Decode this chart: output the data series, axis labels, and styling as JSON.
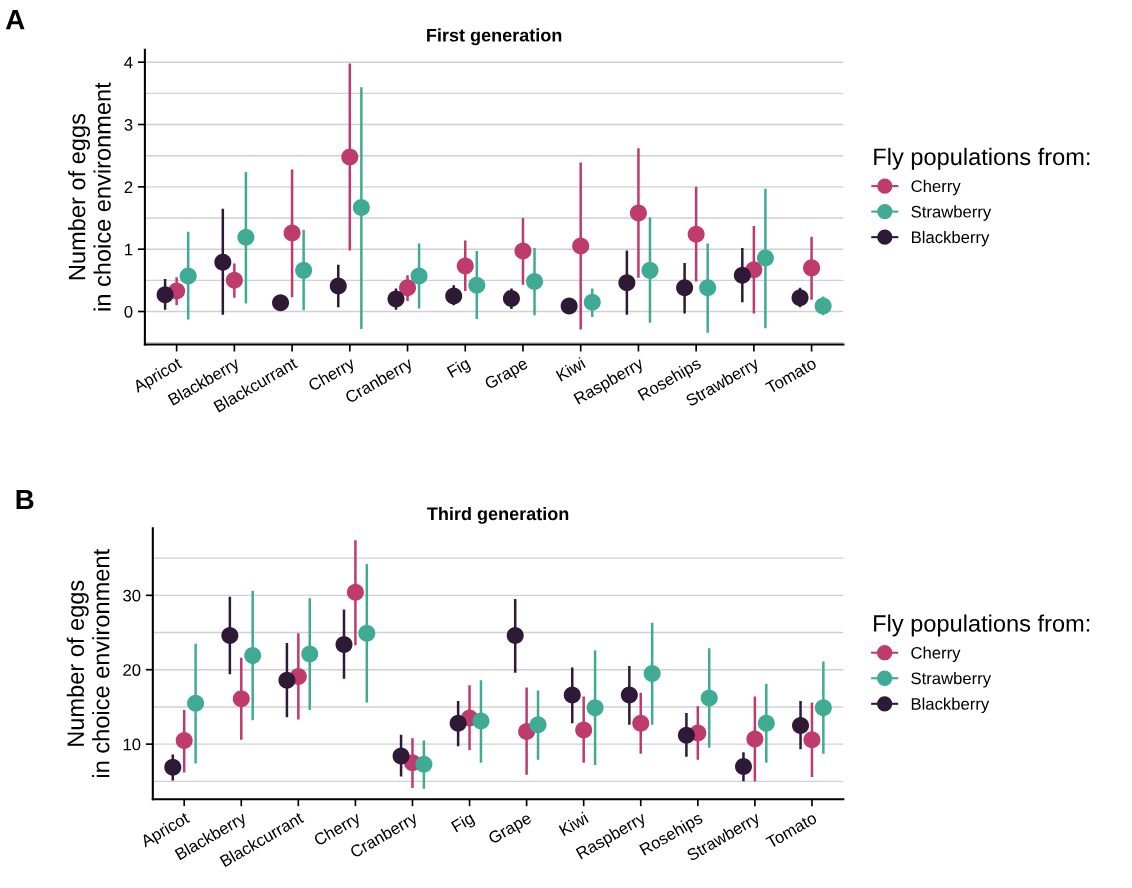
{
  "chart_data": [
    {
      "type": "scatter",
      "title": "First generation",
      "ylabel": "Number of eggs\nin choice environment",
      "legend_title": "Fly populations from:",
      "annotations": [
        "A"
      ],
      "categories": [
        "Apricot",
        "Blackberry",
        "Blackcurrant",
        "Cherry",
        "Cranberry",
        "Fig",
        "Grape",
        "Kiwi",
        "Raspberry",
        "Rosehips",
        "Strawberry",
        "Tomato"
      ],
      "ylim": [
        -0.53,
        4.2
      ],
      "yticks": [
        0,
        1,
        2,
        3,
        4
      ],
      "grid": "y",
      "legend": "right",
      "marker": "circle",
      "series": [
        {
          "name": "Cherry",
          "color": "#bf3b6d",
          "values": [
            0.33,
            0.5,
            1.26,
            2.48,
            0.38,
            0.73,
            0.97,
            1.05,
            1.58,
            1.24,
            0.67,
            0.7
          ],
          "errors": [
            [
              0.1,
              0.55
            ],
            [
              0.22,
              0.77
            ],
            [
              0.23,
              2.28
            ],
            [
              0.98,
              3.98
            ],
            [
              0.17,
              0.58
            ],
            [
              0.33,
              1.14
            ],
            [
              0.43,
              1.5
            ],
            [
              -0.29,
              2.39
            ],
            [
              0.54,
              2.62
            ],
            [
              0.48,
              2.0
            ],
            [
              -0.03,
              1.37
            ],
            [
              0.19,
              1.2
            ]
          ]
        },
        {
          "name": "Strawberry",
          "color": "#3fab94",
          "values": [
            0.57,
            1.19,
            0.66,
            1.67,
            0.57,
            0.42,
            0.48,
            0.15,
            0.66,
            0.38,
            0.86,
            0.09
          ],
          "errors": [
            [
              -0.13,
              1.28
            ],
            [
              0.13,
              2.24
            ],
            [
              0.02,
              1.31
            ],
            [
              -0.28,
              3.6
            ],
            [
              0.05,
              1.09
            ],
            [
              -0.12,
              0.97
            ],
            [
              -0.06,
              1.02
            ],
            [
              -0.09,
              0.37
            ],
            [
              -0.18,
              1.51
            ],
            [
              -0.34,
              1.09
            ],
            [
              -0.27,
              1.97
            ],
            [
              -0.06,
              0.24
            ]
          ]
        },
        {
          "name": "Blackberry",
          "color": "#2e1a37",
          "values": [
            0.27,
            0.79,
            0.14,
            0.41,
            0.2,
            0.25,
            0.21,
            0.09,
            0.46,
            0.38,
            0.58,
            0.22
          ],
          "errors": [
            [
              0.03,
              0.52
            ],
            [
              -0.05,
              1.65
            ],
            [
              0.03,
              0.25
            ],
            [
              0.07,
              0.75
            ],
            [
              0.03,
              0.37
            ],
            [
              0.1,
              0.42
            ],
            [
              0.04,
              0.37
            ],
            null,
            [
              -0.05,
              0.98
            ],
            [
              -0.03,
              0.78
            ],
            [
              0.15,
              1.02
            ],
            [
              0.07,
              0.38
            ]
          ]
        }
      ]
    },
    {
      "type": "scatter",
      "title": "Third generation",
      "ylabel": "Number of eggs\nin choice environment",
      "legend_title": "Fly populations from:",
      "annotations": [
        "B"
      ],
      "categories": [
        "Apricot",
        "Blackberry",
        "Blackcurrant",
        "Cherry",
        "Cranberry",
        "Fig",
        "Grape",
        "Kiwi",
        "Raspberry",
        "Rosehips",
        "Strawberry",
        "Tomato"
      ],
      "ylim": [
        2.6,
        39
      ],
      "yticks": [
        10,
        20,
        30
      ],
      "grid": "y",
      "legend": "right",
      "marker": "circle",
      "series": [
        {
          "name": "Cherry",
          "color": "#bf3b6d",
          "values": [
            10.5,
            16.1,
            19.1,
            30.4,
            7.5,
            13.5,
            11.7,
            11.9,
            12.8,
            11.5,
            10.7,
            10.6
          ],
          "errors": [
            [
              6.2,
              14.6
            ],
            [
              10.6,
              21.6
            ],
            [
              13.3,
              24.9
            ],
            [
              23.3,
              37.4
            ],
            [
              4.1,
              10.8
            ],
            [
              9.2,
              17.9
            ],
            [
              5.9,
              17.6
            ],
            [
              7.5,
              16.4
            ],
            [
              8.7,
              16.9
            ],
            [
              7.9,
              15.1
            ],
            [
              5.0,
              16.4
            ],
            [
              5.6,
              15.6
            ]
          ]
        },
        {
          "name": "Strawberry",
          "color": "#3fab94",
          "values": [
            15.5,
            21.9,
            22.1,
            24.9,
            7.3,
            13.1,
            12.6,
            14.9,
            19.5,
            16.2,
            12.8,
            14.9
          ],
          "errors": [
            [
              7.4,
              23.5
            ],
            [
              13.2,
              30.6
            ],
            [
              14.6,
              29.6
            ],
            [
              15.6,
              34.2
            ],
            [
              4.0,
              10.5
            ],
            [
              7.5,
              18.6
            ],
            [
              7.9,
              17.2
            ],
            [
              7.2,
              22.6
            ],
            [
              12.6,
              26.3
            ],
            [
              9.5,
              22.9
            ],
            [
              7.5,
              18.1
            ],
            [
              8.7,
              21.1
            ]
          ]
        },
        {
          "name": "Blackberry",
          "color": "#2e1a37",
          "values": [
            6.9,
            24.6,
            18.6,
            23.4,
            8.4,
            12.8,
            24.6,
            16.6,
            16.6,
            11.2,
            7.0,
            12.5
          ],
          "errors": [
            [
              5.1,
              8.6
            ],
            [
              19.4,
              29.8
            ],
            [
              13.6,
              23.6
            ],
            [
              18.8,
              28.1
            ],
            [
              5.65,
              11.25
            ],
            [
              9.7,
              15.8
            ],
            [
              19.6,
              29.5
            ],
            [
              12.8,
              20.3
            ],
            [
              12.6,
              20.5
            ],
            [
              8.3,
              14.2
            ],
            [
              5.0,
              8.9
            ],
            [
              9.3,
              15.8
            ]
          ]
        }
      ]
    }
  ]
}
